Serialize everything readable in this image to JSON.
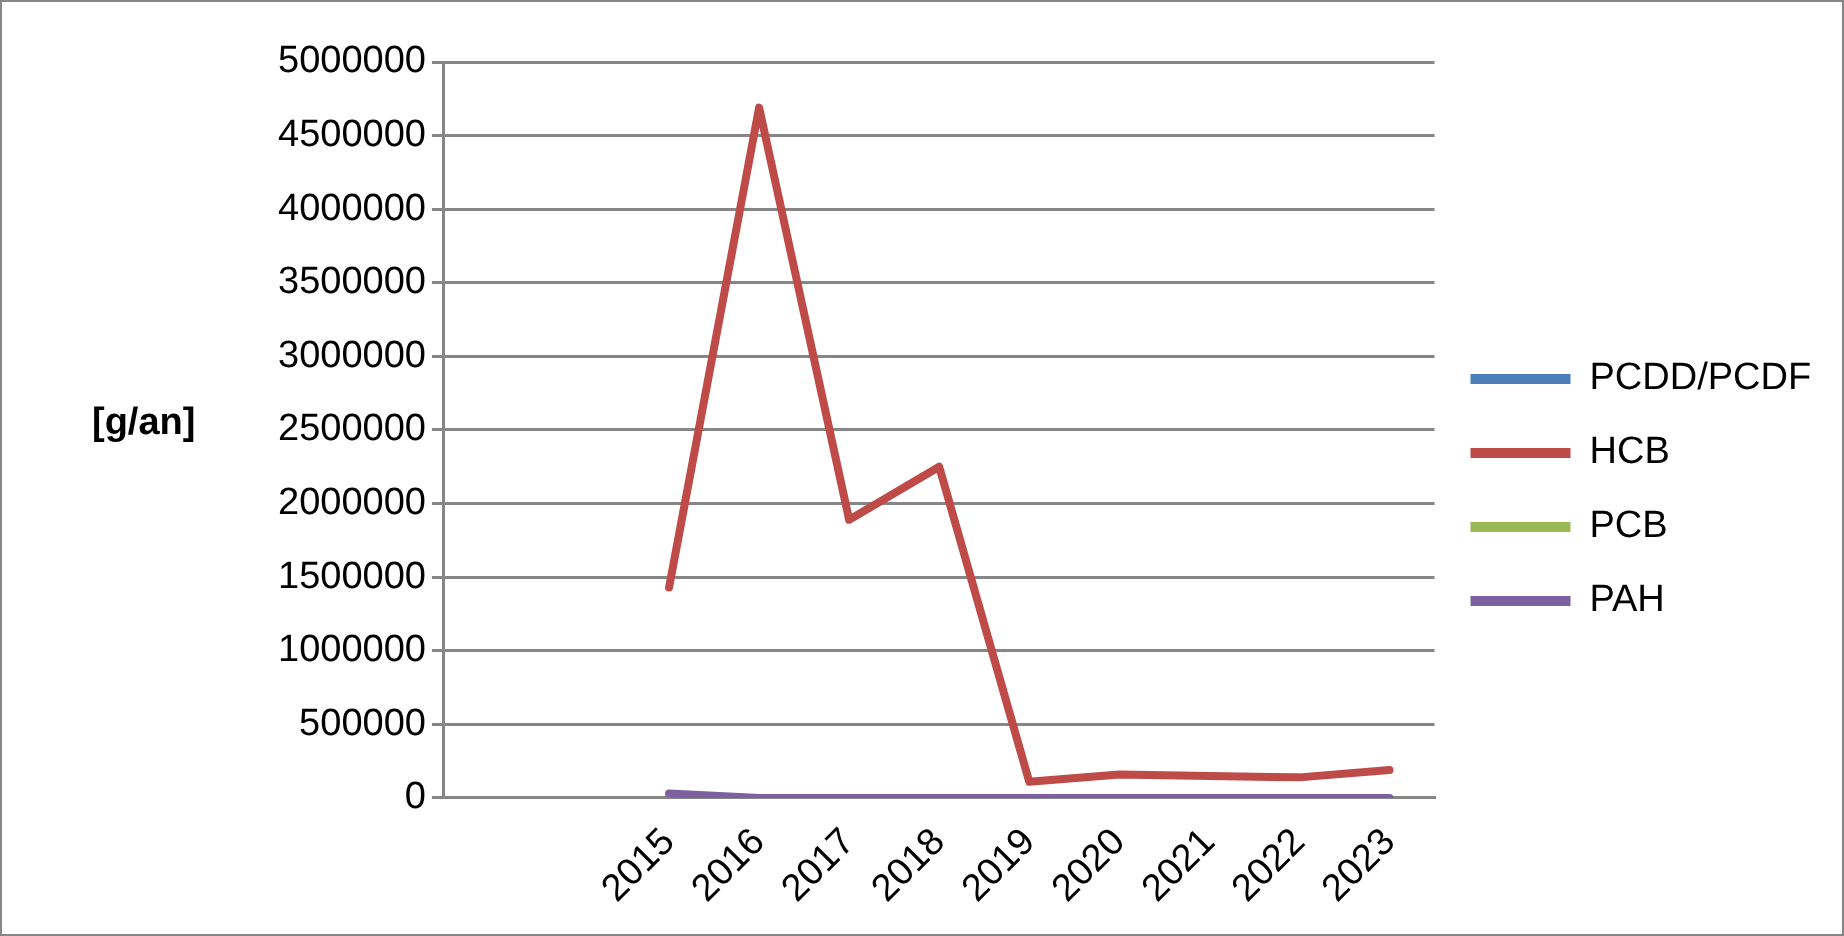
{
  "chart_data": {
    "type": "line",
    "ylabel": "[g/an]",
    "categories": [
      null,
      null,
      "2015",
      "2016",
      "2017",
      "2018",
      "2019",
      "2020",
      "2021",
      "2022",
      "2023"
    ],
    "series": [
      {
        "name": "PCDD/PCDF",
        "color": "#4a7ebb",
        "values": [
          null,
          null,
          null,
          null,
          null,
          null,
          null,
          null,
          null,
          null,
          null
        ]
      },
      {
        "name": "HCB",
        "color": "#be4b48",
        "values": [
          null,
          null,
          1430000,
          4690000,
          1890000,
          2250000,
          110000,
          160000,
          150000,
          140000,
          190000
        ]
      },
      {
        "name": "PCB",
        "color": "#98b954",
        "values": [
          null,
          null,
          null,
          null,
          null,
          null,
          null,
          null,
          null,
          null,
          null
        ]
      },
      {
        "name": "PAH",
        "color": "#7d60a0",
        "values": [
          null,
          null,
          30000,
          0,
          0,
          0,
          0,
          0,
          0,
          0,
          0
        ]
      }
    ],
    "ylim": [
      0,
      5000000
    ],
    "yticks": [
      0,
      500000,
      1000000,
      1500000,
      2000000,
      2500000,
      3000000,
      3500000,
      4000000,
      4500000,
      5000000
    ],
    "grid": "y",
    "legend": "right",
    "marker": "none",
    "line_style": "solid"
  }
}
